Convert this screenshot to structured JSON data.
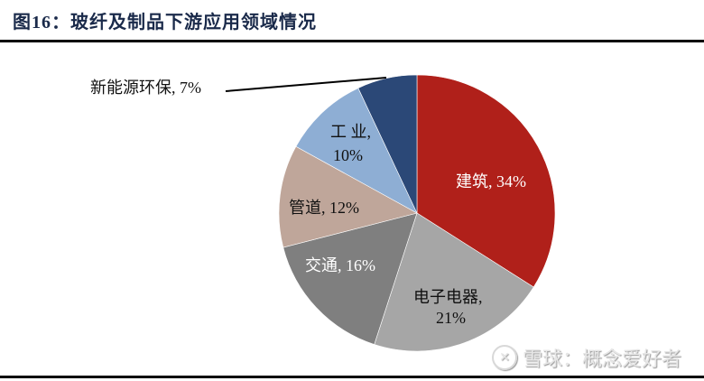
{
  "header": {
    "title": "图16：玻纤及制品下游应用领域情况"
  },
  "watermark": {
    "icon": "snowball-logo-icon",
    "text": "雪球：概念爱好者"
  },
  "chart_data": {
    "type": "pie",
    "title": "图16：玻纤及制品下游应用领域情况",
    "categories": [
      "建筑",
      "电子电器",
      "交通",
      "管道",
      "工业",
      "新能源环保"
    ],
    "values": [
      34,
      21,
      16,
      12,
      10,
      7
    ],
    "unit": "%",
    "colors": [
      "#B0201A",
      "#A6A6A6",
      "#7F7F7F",
      "#BFA69A",
      "#8EAED4",
      "#2B4877"
    ],
    "labels": [
      "建筑, 34%",
      "电子电器, 21%",
      "交通, 16%",
      "管道, 12%",
      "工业, 10%",
      "新能源环保, 7%"
    ],
    "start_angle": "12 o'clock",
    "direction": "clockwise",
    "legend": "none (data labels on slices)"
  },
  "labels": {
    "jianzhu": "建筑, 34%",
    "dianzi_1": "电子电器,",
    "dianzi_2": "21%",
    "jiaotong": "交通, 16%",
    "guandao": "管道, 12%",
    "gongye_1": "工 业,",
    "gongye_2": "10%",
    "xinnengyuan": "新能源环保, 7%"
  }
}
